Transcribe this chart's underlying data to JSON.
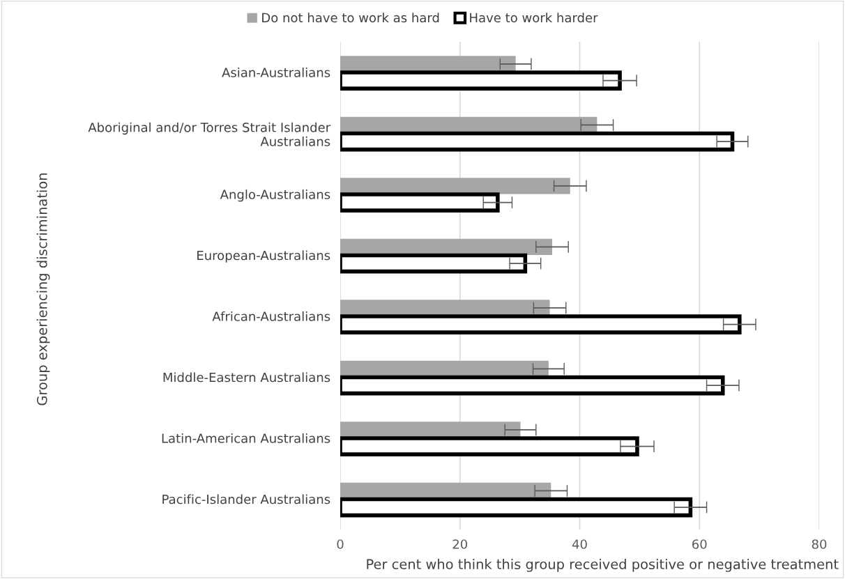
{
  "chart_data": {
    "type": "bar",
    "orientation": "horizontal",
    "xlabel": "Per cent who think this group received positive or negative treatment",
    "ylabel": "Group experiencing discrimination",
    "categories": [
      "Asian-Australians",
      "Aboriginal and/or Torres Strait Islander\nAustralians",
      "Anglo-Australians",
      "European-Australians",
      "African-Australians",
      "Middle-Eastern Australians",
      "Latin-American Australians",
      "Pacific-Islander Australians"
    ],
    "series": [
      {
        "name": "Do not have to work as hard",
        "color": "#a6a6a6",
        "values": [
          29.3,
          42.9,
          38.4,
          35.4,
          35.0,
          34.8,
          30.1,
          35.2
        ],
        "errors": [
          2.6,
          2.7,
          2.7,
          2.7,
          2.7,
          2.6,
          2.6,
          2.7
        ]
      },
      {
        "name": "Have to work harder",
        "color": "#ffffff",
        "values": [
          46.7,
          65.5,
          26.3,
          30.9,
          66.7,
          63.9,
          49.6,
          58.5
        ],
        "errors": [
          2.8,
          2.6,
          2.4,
          2.6,
          2.7,
          2.7,
          2.8,
          2.7
        ]
      }
    ],
    "xlim": [
      0,
      80
    ],
    "xticks": [
      0,
      20,
      40,
      60,
      80
    ],
    "grid": "x",
    "legend": "top"
  }
}
